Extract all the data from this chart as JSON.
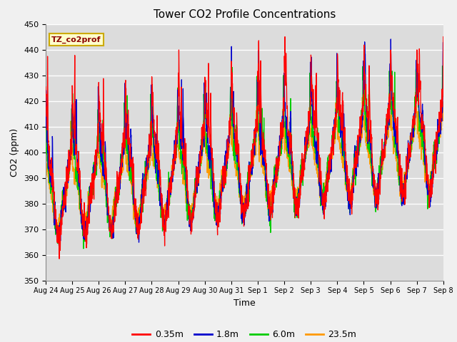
{
  "title": "Tower CO2 Profile Concentrations",
  "xlabel": "Time",
  "ylabel": "CO2 (ppm)",
  "ylim": [
    350,
    450
  ],
  "yticks": [
    350,
    360,
    370,
    380,
    390,
    400,
    410,
    420,
    430,
    440,
    450
  ],
  "legend_label": "TZ_co2prof",
  "series_labels": [
    "0.35m",
    "1.8m",
    "6.0m",
    "23.5m"
  ],
  "series_colors": [
    "#FF0000",
    "#0000CC",
    "#00CC00",
    "#FF9900"
  ],
  "plot_bg_color": "#DCDCDC",
  "grid_color": "#FFFFFF",
  "n_days": 15,
  "seed": 42,
  "day_labels": [
    "Aug 24",
    "Aug 25",
    "Aug 26",
    "Aug 27",
    "Aug 28",
    "Aug 29",
    "Aug 30",
    "Aug 31",
    "Sep 1",
    "Sep 2",
    "Sep 3",
    "Sep 4",
    "Sep 5",
    "Sep 6",
    "Sep 7",
    "Sep 8"
  ]
}
